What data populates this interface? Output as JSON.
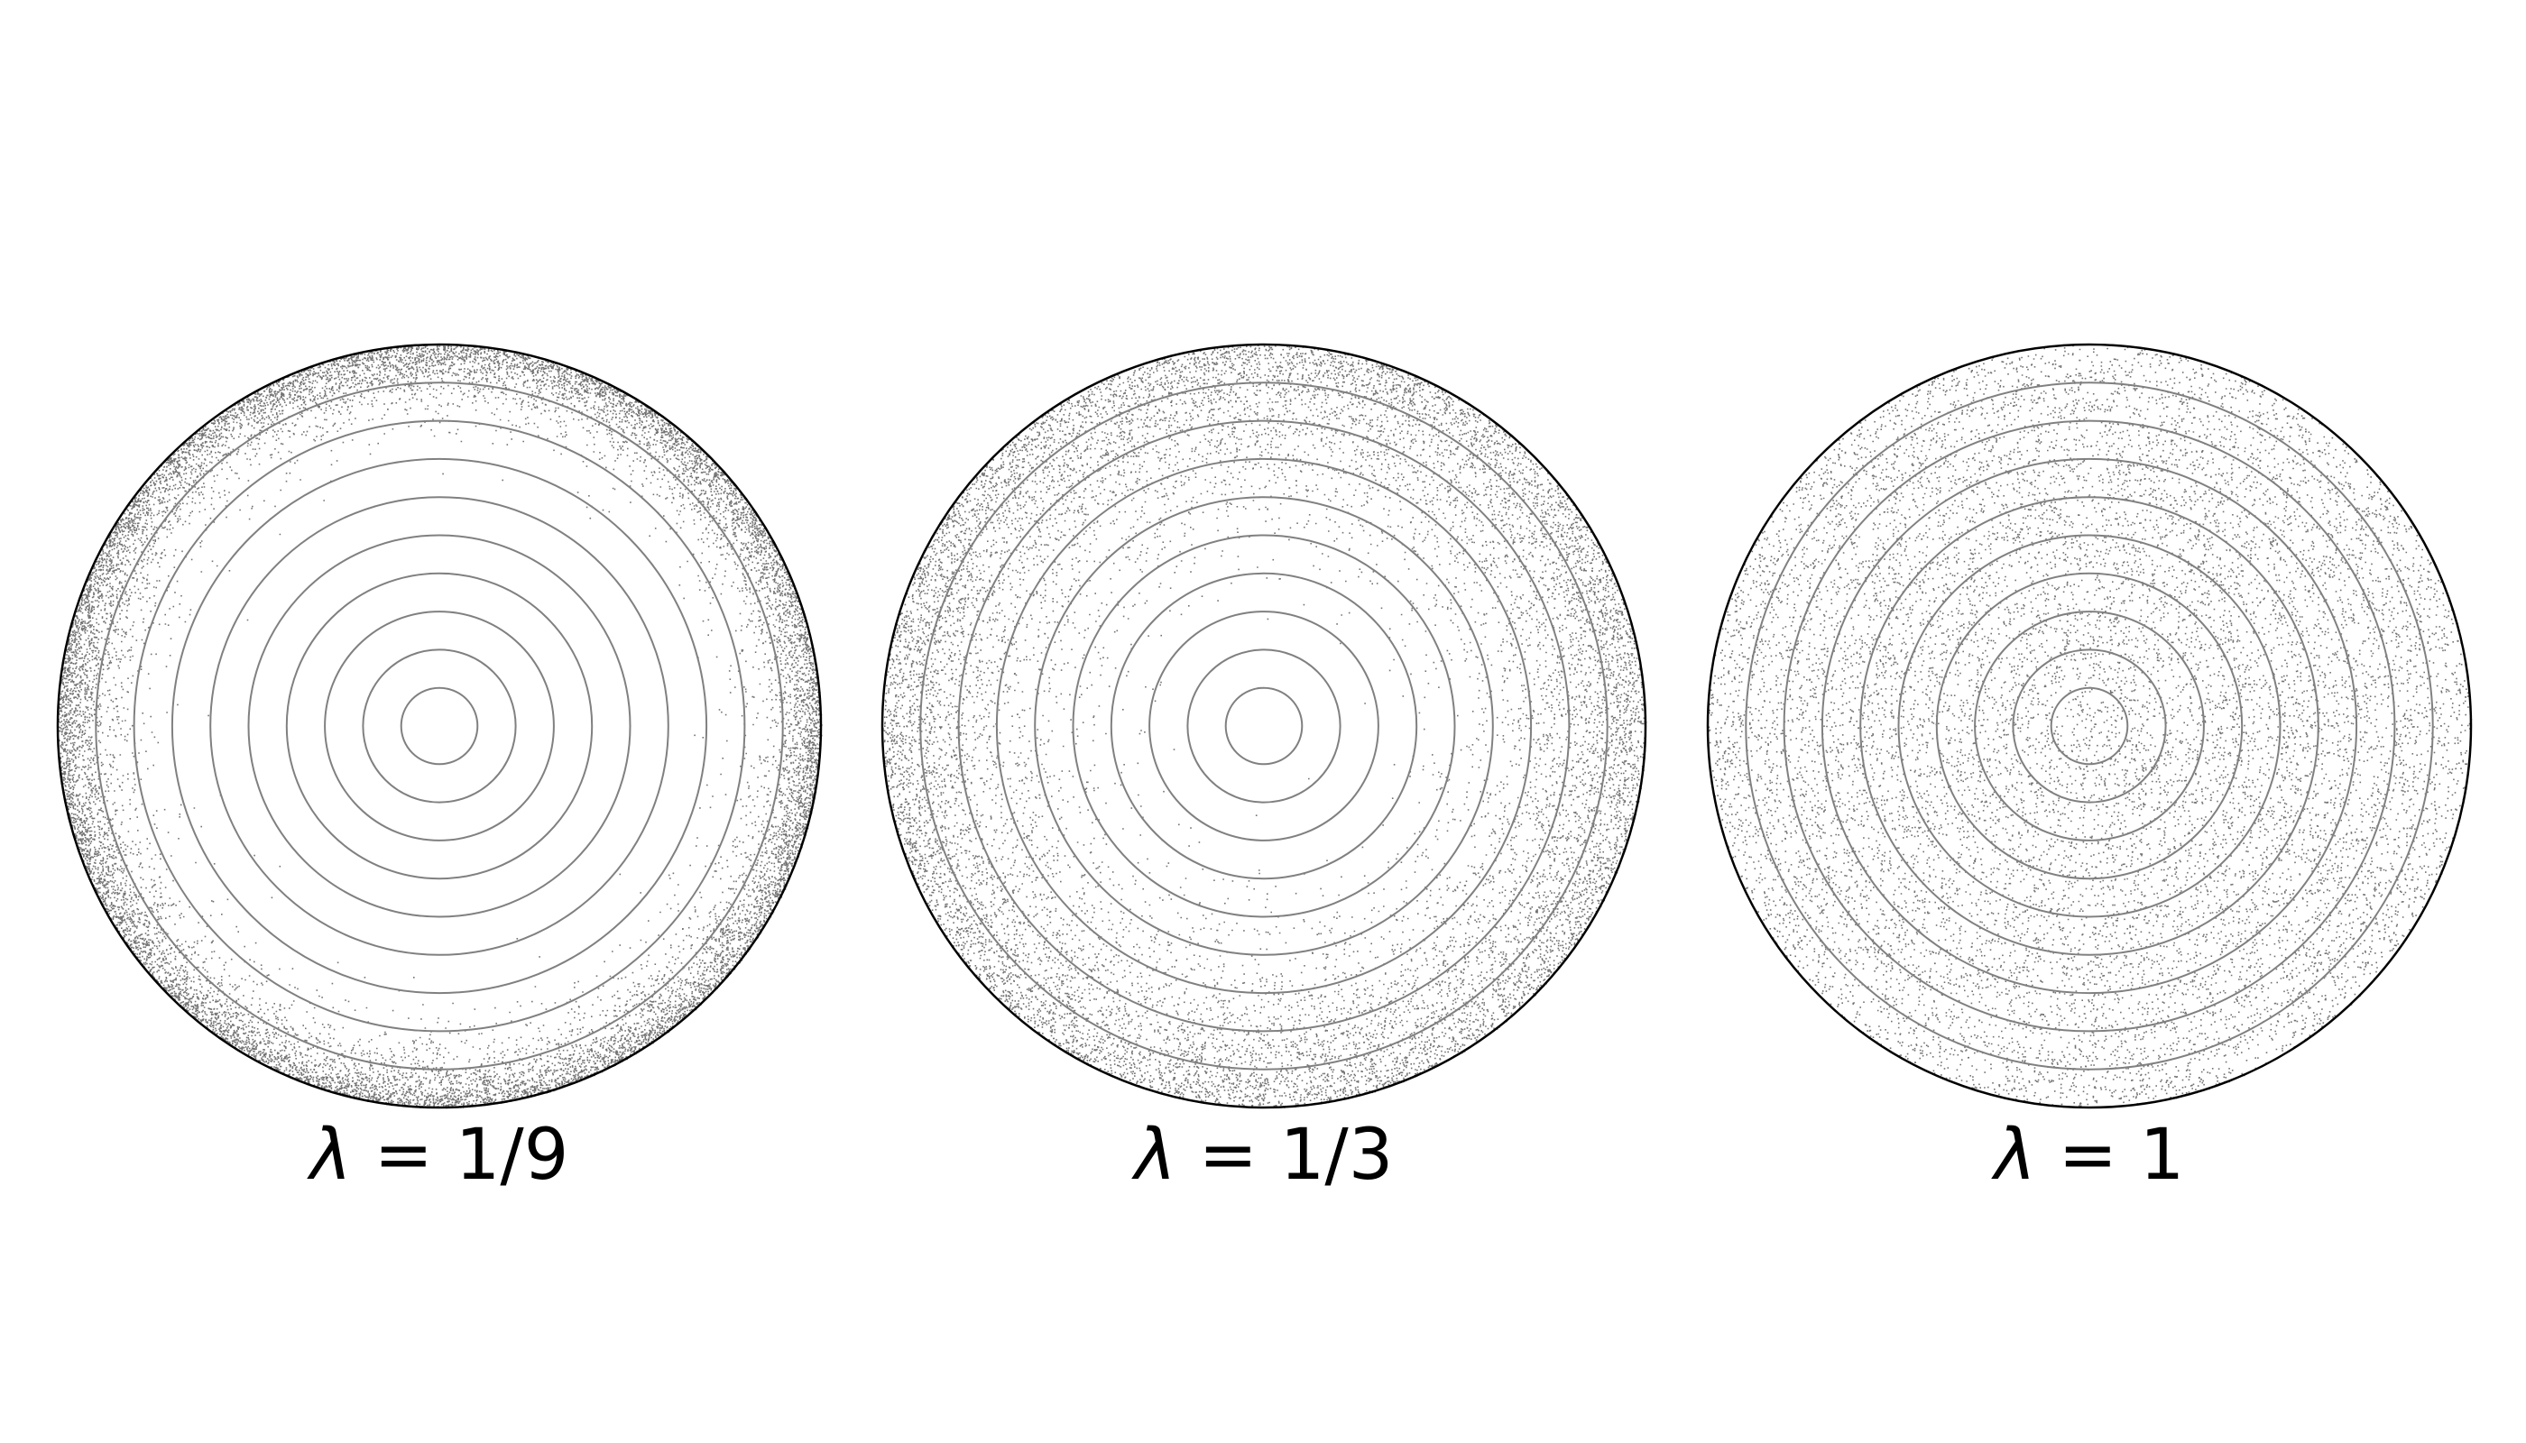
{
  "figure": {
    "panels": [
      {
        "lambda_symbol": "λ",
        "equals": " = ",
        "lambda_value": "1/9",
        "lambda_numeric": 0.1111,
        "ring_count": 10,
        "edge_concentration": "strong"
      },
      {
        "lambda_symbol": "λ",
        "equals": " = ",
        "lambda_value": "1/3",
        "lambda_numeric": 0.3333,
        "ring_count": 10,
        "edge_concentration": "moderate"
      },
      {
        "lambda_symbol": "λ",
        "equals": " = ",
        "lambda_value": "1",
        "lambda_numeric": 1,
        "ring_count": 10,
        "edge_concentration": "uniform"
      }
    ],
    "colors": {
      "outline": "#000000",
      "ring": "#808080",
      "dots": "#000000",
      "background": "#ffffff"
    }
  }
}
